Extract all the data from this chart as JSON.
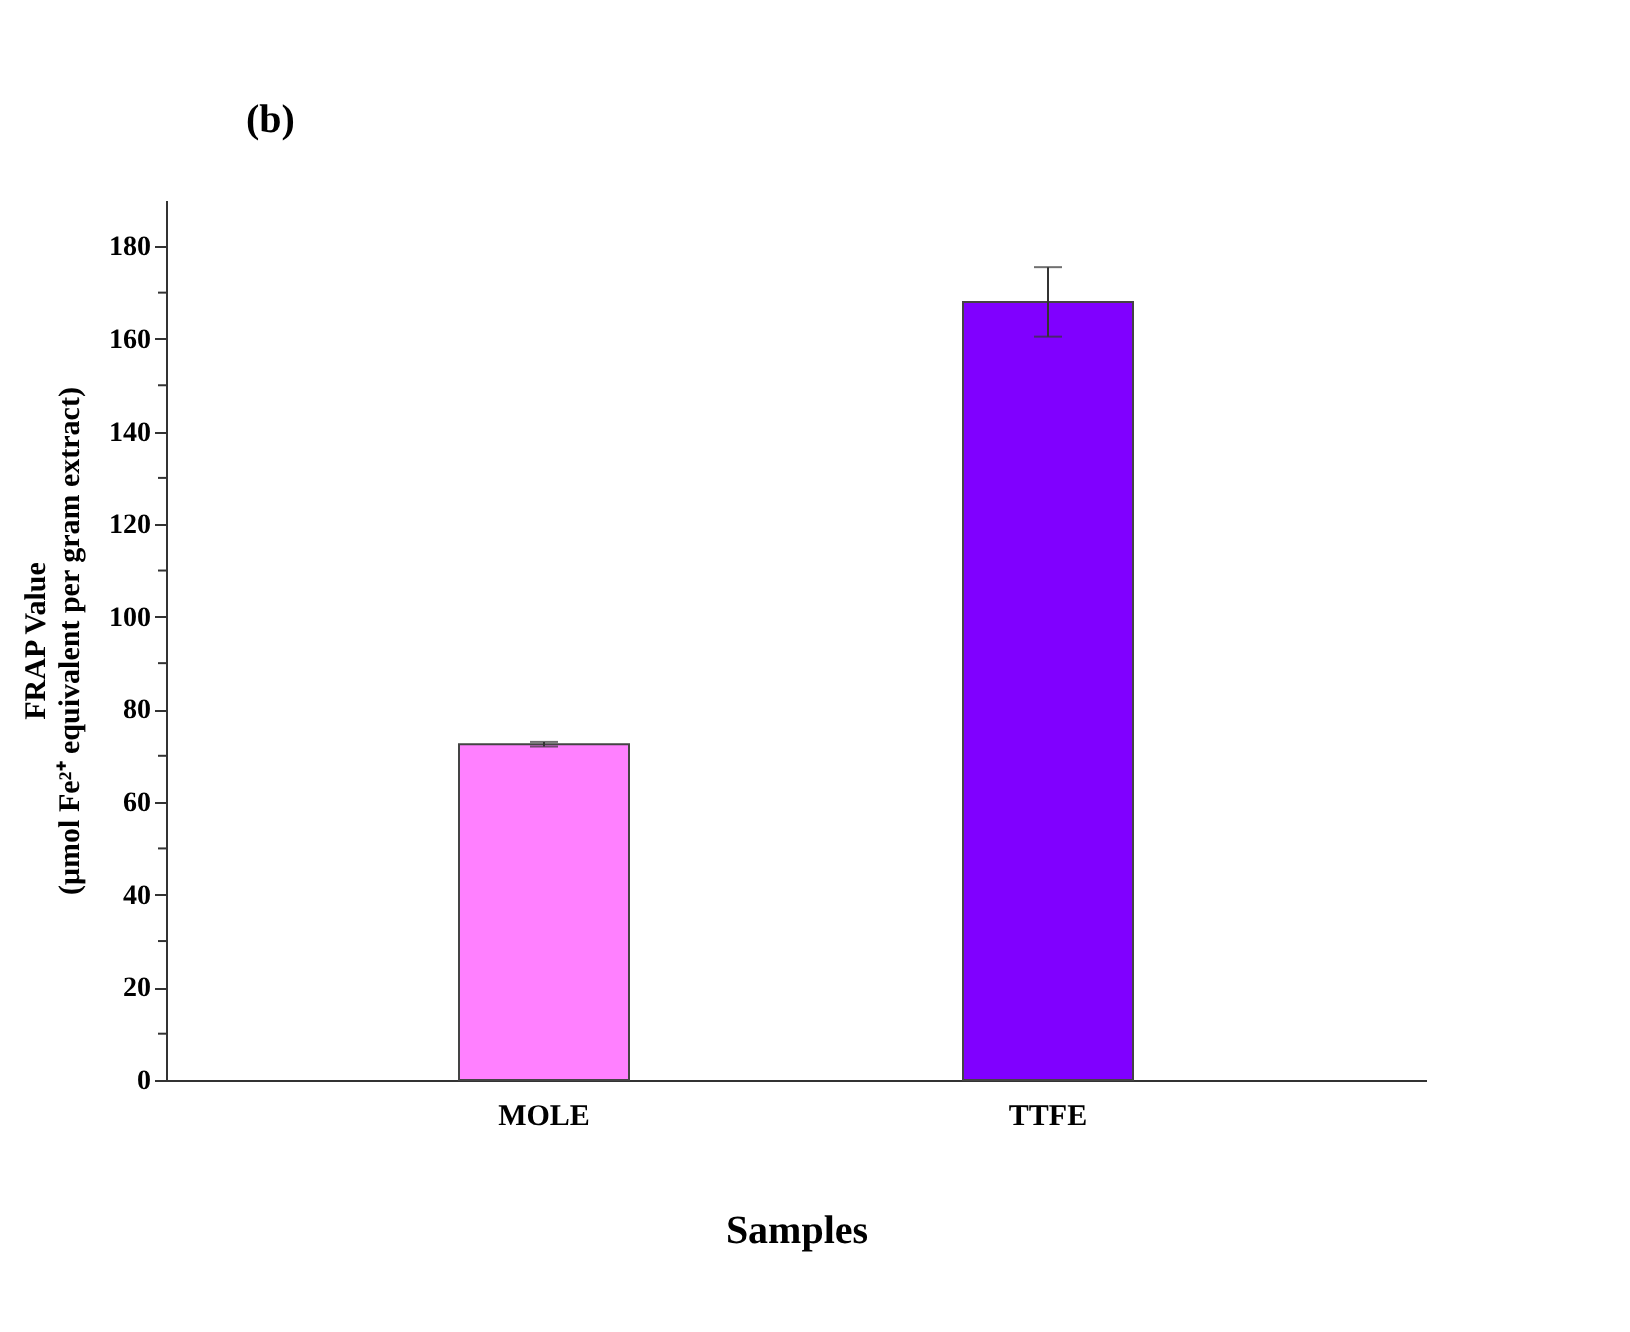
{
  "chart_data": {
    "type": "bar",
    "categories": [
      "MOLE",
      "TTFE"
    ],
    "values": [
      72.5,
      168
    ],
    "errors": [
      0.5,
      7.5
    ],
    "colors": [
      "#ff80ff",
      "#8000ff"
    ],
    "xlabel": "Samples",
    "ylabel": "FRAP Value\n(μmol Fe²⁺ equivalent per gram extract)",
    "annotations": [
      "(b)"
    ],
    "ylim": [
      0,
      190
    ],
    "yticks": [
      0,
      {
        "value": 10,
        "label": null
      },
      20,
      {
        "value": 30,
        "label": null
      },
      40,
      {
        "value": 50,
        "label": null
      },
      60,
      {
        "value": 70,
        "label": null
      },
      80,
      {
        "value": 90,
        "label": null
      },
      100,
      {
        "value": 110,
        "label": null
      },
      120,
      {
        "value": 130,
        "label": null
      },
      140,
      {
        "value": 150,
        "label": null
      },
      160,
      {
        "value": 170,
        "label": null
      },
      180
    ],
    "grid": false
  }
}
